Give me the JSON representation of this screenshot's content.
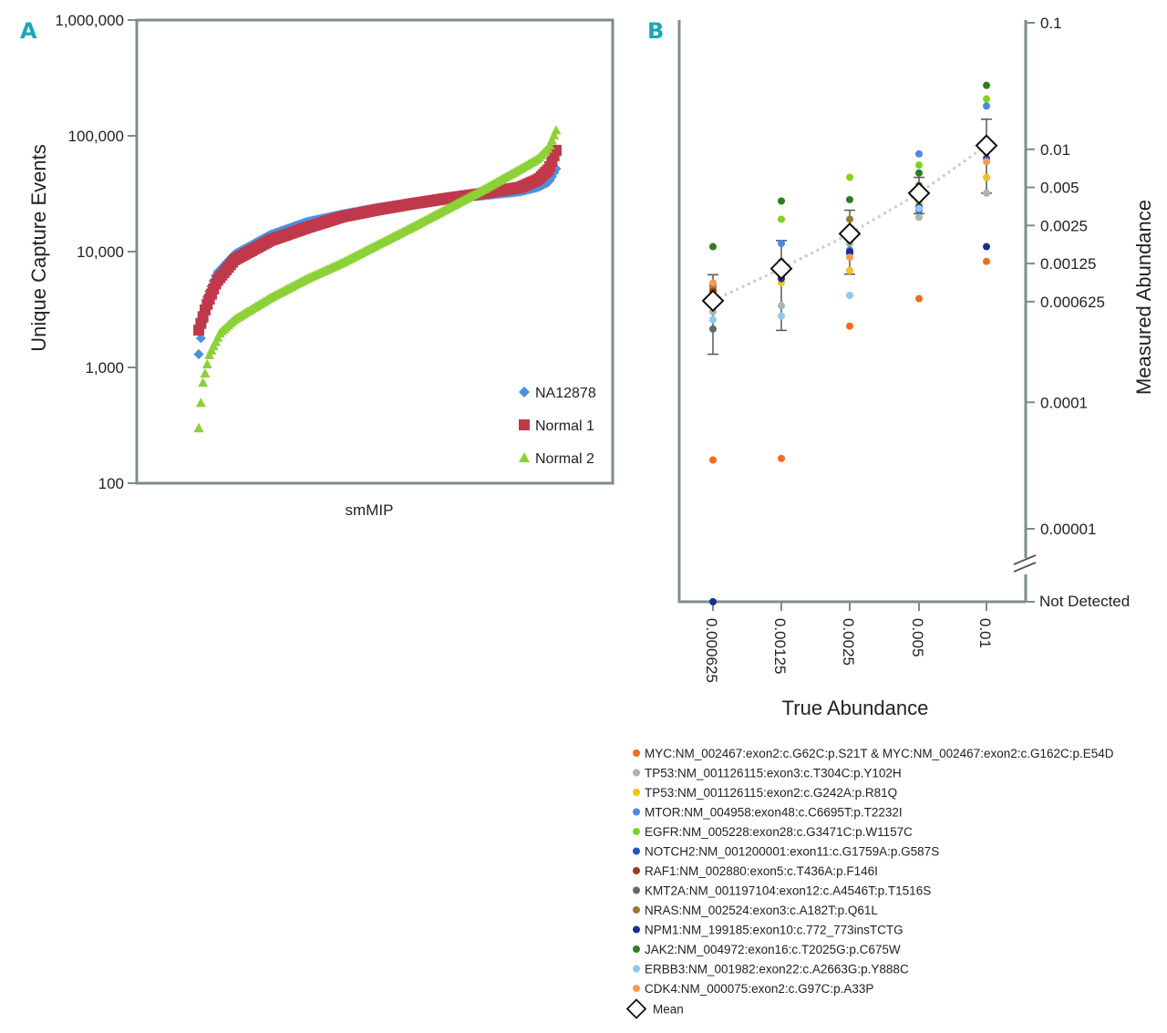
{
  "chart_data": [
    {
      "type": "scatter",
      "panel": "A",
      "title": "",
      "xlabel": "smMIP",
      "ylabel": "Unique Capture Events",
      "yscale": "log",
      "ylim": [
        100,
        1000000
      ],
      "yticks": [
        {
          "value": 100,
          "label": "100"
        },
        {
          "value": 1000,
          "label": "1,000"
        },
        {
          "value": 10000,
          "label": "10,000"
        },
        {
          "value": 100000,
          "label": "100,000"
        },
        {
          "value": 1000000,
          "label": "1,000,000"
        }
      ],
      "xlim": [
        0,
        100
      ],
      "legend_position": "bottom-right",
      "series": [
        {
          "name": "NA12878",
          "marker": "diamond",
          "color": "#4a90e2",
          "x": [
            0,
            2,
            5,
            10,
            20,
            30,
            40,
            50,
            60,
            70,
            80,
            90,
            95,
            98,
            100
          ],
          "y": [
            1300,
            3800,
            6500,
            9500,
            14000,
            18000,
            21000,
            24000,
            26500,
            28500,
            30500,
            33000,
            36000,
            40000,
            52000
          ]
        },
        {
          "name": "Normal 1",
          "marker": "square",
          "color": "#c0394b",
          "x": [
            0,
            2,
            5,
            10,
            20,
            30,
            40,
            50,
            60,
            70,
            80,
            90,
            95,
            98,
            100
          ],
          "y": [
            2100,
            3300,
            5500,
            8500,
            12500,
            16000,
            20000,
            23000,
            26000,
            29000,
            32000,
            36000,
            42000,
            52000,
            75000
          ]
        },
        {
          "name": "Normal 2",
          "marker": "triangle",
          "color": "#8cd137",
          "x": [
            0,
            1,
            3,
            6,
            10,
            20,
            30,
            40,
            50,
            60,
            70,
            80,
            90,
            95,
            98,
            100
          ],
          "y": [
            300,
            700,
            1300,
            2000,
            2600,
            4000,
            5800,
            8000,
            11500,
            16500,
            24000,
            35000,
            52000,
            64000,
            80000,
            112000
          ]
        }
      ]
    },
    {
      "type": "scatter",
      "panel": "B",
      "title": "",
      "xlabel": "True Abundance",
      "ylabel": "Measured Abundance",
      "categories": [
        "0.000625",
        "0.00125",
        "0.0025",
        "0.005",
        "0.01"
      ],
      "yscale": "log",
      "ylim": [
        1e-05,
        0.1
      ],
      "yticks": [
        {
          "value": 0.1,
          "label": "0.1"
        },
        {
          "value": 0.01,
          "label": "0.01"
        },
        {
          "value": 0.005,
          "label": "0.005"
        },
        {
          "value": 0.0025,
          "label": "0.0025"
        },
        {
          "value": 0.00125,
          "label": "0.00125"
        },
        {
          "value": 0.000625,
          "label": "0.000625"
        },
        {
          "value": 0.0001,
          "label": "0.0001"
        },
        {
          "value": 1e-05,
          "label": "0.00001"
        }
      ],
      "not_detected_label": "Not Detected",
      "not_detected_color": "#e8221b",
      "legend_position": "bottom",
      "series": [
        {
          "name": "MYC:NM_002467:exon2:c.G62C:p.S21T & MYC:NM_002467:exon2:c.G162C:p.E54D",
          "color": "#f26b21",
          "values": [
            3.5e-05,
            3.6e-05,
            0.0004,
            0.00066,
            0.0013
          ]
        },
        {
          "name": "TP53:NM_001126115:exon3:c.T304C:p.Y102H",
          "color": "#a9b5ae",
          "values": [
            0.00052,
            0.00058,
            0.0018,
            0.0029,
            0.0045
          ]
        },
        {
          "name": "TP53:NM_001126115:exon2:c.G242A:p.R81Q",
          "color": "#f5c11b",
          "values": [
            0.00082,
            0.00088,
            0.0011,
            0.0038,
            0.006
          ]
        },
        {
          "name": "MTOR:NM_004958:exon48:c.C6695T:p.T2232I",
          "color": "#4f86e8",
          "values": [
            0.00082,
            0.0018,
            0.0016,
            0.0092,
            0.022
          ]
        },
        {
          "name": "EGFR:NM_005228:exon28:c.G3471C:p.W1157C",
          "color": "#7ed321",
          "values": [
            0.00078,
            0.0028,
            0.006,
            0.0075,
            0.025
          ]
        },
        {
          "name": "NOTCH2:NM_001200001:exon11:c.G1759A:p.G587S",
          "color": "#2255c4",
          "values": [
            0.00072,
            0.0012,
            0.0015,
            0.0033,
            0.0085
          ]
        },
        {
          "name": "RAF1:NM_002880:exon5:c.T436A:p.F146I",
          "color": "#a1391c",
          "values": [
            0.00076,
            0.001,
            0.0022,
            0.0048,
            0.0095
          ]
        },
        {
          "name": "KMT2A:NM_001197104:exon12:c.A4546T:p.T1516S",
          "color": "#5f6b68",
          "values": [
            0.00038,
            0.001,
            0.0024,
            0.0045,
            0.011
          ]
        },
        {
          "name": "NRAS:NM_002524:exon3:c.A182T:p.Q61L",
          "color": "#9a7a2e",
          "values": [
            0.00085,
            0.00105,
            0.0028,
            0.0052,
            0.012
          ]
        },
        {
          "name": "NPM1:NM_199185:exon10:c.772_773insTCTG",
          "color": "#1a2f8c",
          "values": [
            "ND",
            0.00095,
            0.00155,
            0.0035,
            0.0017
          ]
        },
        {
          "name": "JAK2:NM_004972:exon16:c.T2025G:p.C675W",
          "color": "#2e7d1f",
          "values": [
            0.0017,
            0.0039,
            0.004,
            0.0065,
            0.032
          ]
        },
        {
          "name": "ERBB3:NM_001982:exon22:c.A2663G:p.Y888C",
          "color": "#8fc8ef",
          "values": [
            0.00045,
            0.00048,
            0.0007,
            0.0034,
            0.011
          ]
        },
        {
          "name": "CDK4:NM_000075:exon2:c.G97C:p.A33P",
          "color": "#f79a55",
          "values": [
            0.00088,
            0.0013,
            0.0014,
            0.0042,
            0.008
          ]
        }
      ],
      "mean": {
        "name": "Mean",
        "values": [
          0.000635,
          0.00114,
          0.00215,
          0.0045,
          0.0107
        ],
        "error_low": [
          0.00024,
          0.00037,
          0.00103,
          0.0031,
          0.0045
        ],
        "error_high": [
          0.00102,
          0.0019,
          0.0033,
          0.006,
          0.0173
        ]
      }
    }
  ]
}
